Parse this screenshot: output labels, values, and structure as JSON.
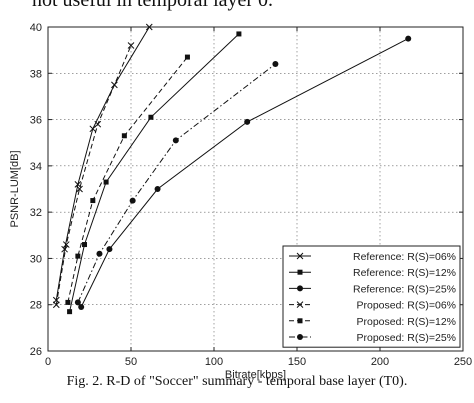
{
  "preceding_text": "not useful in temporal layer 0.",
  "caption": "Fig. 2.    R-D of \"Soccer\" summary - temporal base layer (T0).",
  "chart_data": {
    "type": "line",
    "xlabel": "Bitrate[kbps]",
    "ylabel": "PSNR-LUM[dB]",
    "xlim": [
      0,
      250
    ],
    "ylim": [
      26,
      40
    ],
    "xticks": [
      0,
      50,
      100,
      150,
      200,
      250
    ],
    "yticks": [
      26,
      28,
      30,
      32,
      34,
      36,
      38,
      40
    ],
    "grid": true,
    "legend_position": "bottom-right",
    "series": [
      {
        "name": "Reference: R(S)=06%",
        "line": "solid",
        "marker": "x",
        "x": [
          5,
          10,
          18,
          27,
          40,
          61
        ],
        "y": [
          28.2,
          30.4,
          33.2,
          35.6,
          37.5,
          40.0
        ]
      },
      {
        "name": "Reference: R(S)=12%",
        "line": "solid",
        "marker": "square",
        "x": [
          13,
          22,
          35,
          62,
          115
        ],
        "y": [
          27.7,
          30.6,
          33.3,
          36.1,
          39.7
        ]
      },
      {
        "name": "Reference: R(S)=25%",
        "line": "solid",
        "marker": "circle",
        "x": [
          20,
          37,
          66,
          120,
          217
        ],
        "y": [
          27.9,
          30.4,
          33.0,
          35.9,
          39.5
        ]
      },
      {
        "name": "Proposed:  R(S)=06%",
        "line": "dashed",
        "marker": "x",
        "x": [
          5,
          11,
          19,
          30,
          50
        ],
        "y": [
          28.0,
          30.6,
          33.0,
          35.8,
          39.2
        ]
      },
      {
        "name": "Proposed:  R(S)=12%",
        "line": "dashed",
        "marker": "square",
        "x": [
          12,
          18,
          27,
          46,
          84
        ],
        "y": [
          28.1,
          30.1,
          32.5,
          35.3,
          38.7
        ]
      },
      {
        "name": "Proposed:  R(S)=25%",
        "line": "dashdot",
        "marker": "circle",
        "x": [
          18,
          31,
          51,
          77,
          137
        ],
        "y": [
          28.1,
          30.2,
          32.5,
          35.1,
          38.4
        ]
      }
    ]
  }
}
